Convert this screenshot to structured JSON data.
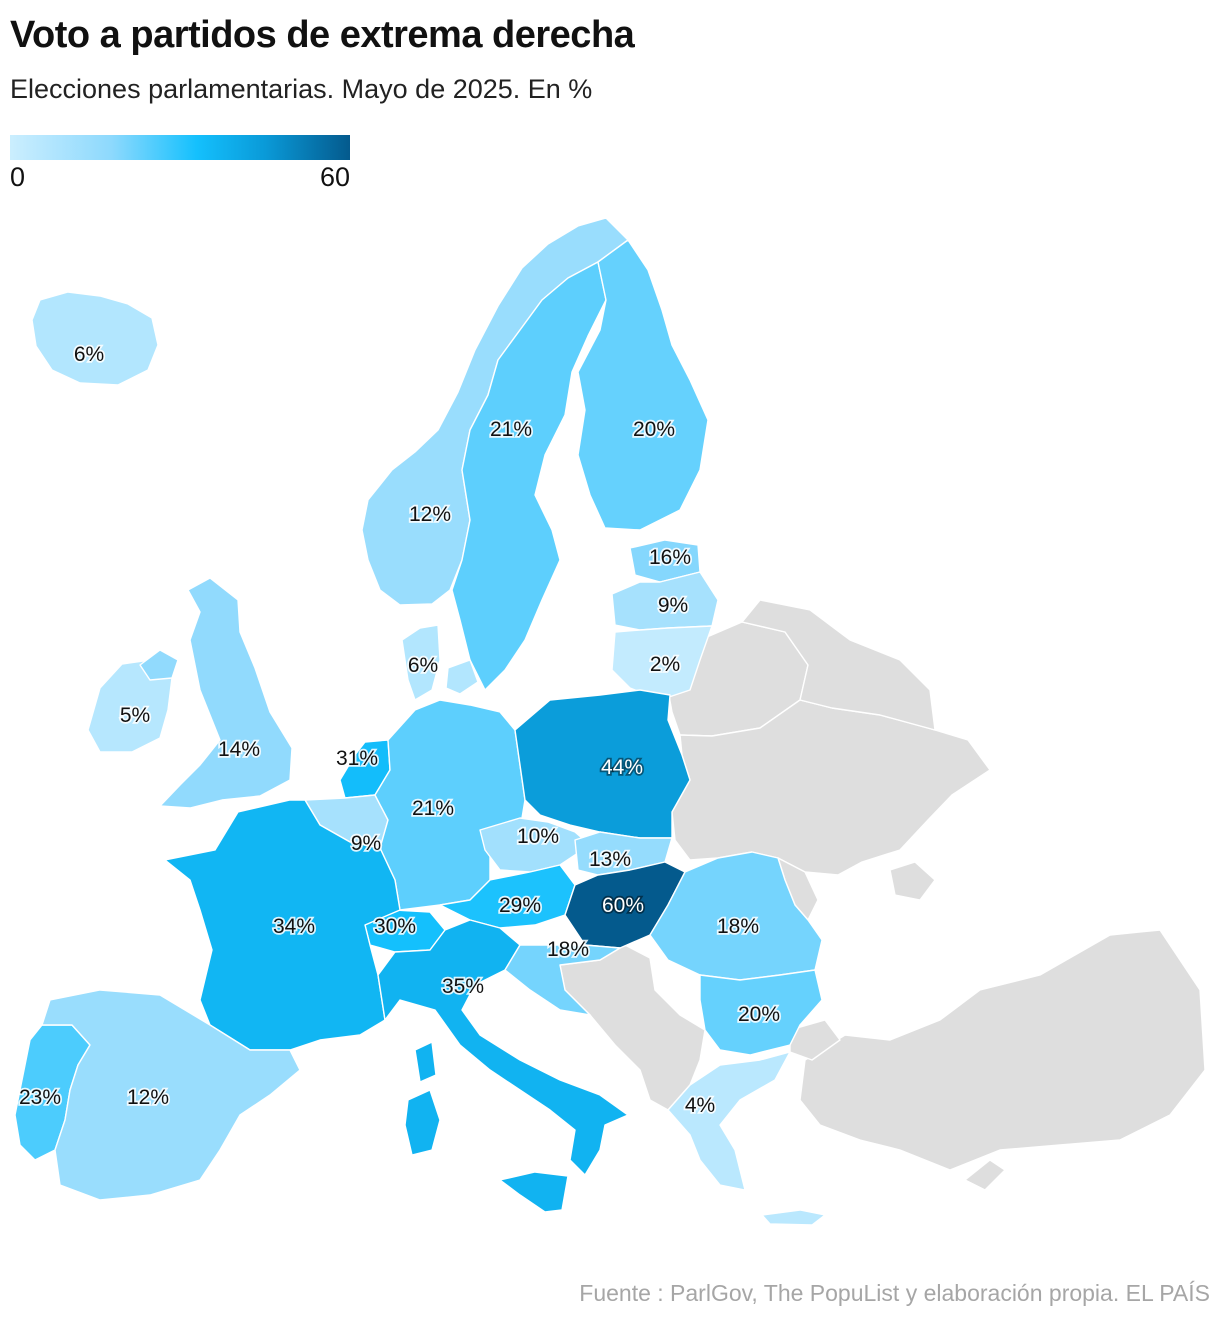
{
  "header": {
    "title": "Voto a partidos de extrema derecha",
    "subtitle": "Elecciones parlamentarias. Mayo de 2025. En %"
  },
  "legend": {
    "min_label": "0",
    "max_label": "60",
    "scale": {
      "min": 0,
      "max": 60
    },
    "colors": [
      "#cbeefe",
      "#8dd9fd",
      "#14c0fd",
      "#0a9ad8",
      "#045a8d"
    ]
  },
  "no_data_color": "#dedede",
  "chart_data": {
    "type": "choropleth",
    "unit": "%",
    "regions": [
      {
        "id": "iceland",
        "value": 6,
        "label": "6%"
      },
      {
        "id": "norway",
        "value": 12,
        "label": "12%"
      },
      {
        "id": "sweden",
        "value": 21,
        "label": "21%"
      },
      {
        "id": "finland",
        "value": 20,
        "label": "20%"
      },
      {
        "id": "estonia",
        "value": 16,
        "label": "16%"
      },
      {
        "id": "latvia",
        "value": 9,
        "label": "9%"
      },
      {
        "id": "lithuania",
        "value": 2,
        "label": "2%"
      },
      {
        "id": "denmark",
        "value": 6,
        "label": "6%"
      },
      {
        "id": "ireland",
        "value": 5,
        "label": "5%"
      },
      {
        "id": "united-kingdom",
        "value": 14,
        "label": "14%"
      },
      {
        "id": "netherlands",
        "value": 31,
        "label": "31%"
      },
      {
        "id": "belgium",
        "value": 9,
        "label": "9%"
      },
      {
        "id": "germany",
        "value": 21,
        "label": "21%"
      },
      {
        "id": "poland",
        "value": 44,
        "label": "44%"
      },
      {
        "id": "czechia",
        "value": 10,
        "label": "10%"
      },
      {
        "id": "slovakia",
        "value": 13,
        "label": "13%"
      },
      {
        "id": "austria",
        "value": 29,
        "label": "29%"
      },
      {
        "id": "hungary",
        "value": 60,
        "label": "60%"
      },
      {
        "id": "switzerland",
        "value": 30,
        "label": "30%"
      },
      {
        "id": "france",
        "value": 34,
        "label": "34%"
      },
      {
        "id": "italy",
        "value": 35,
        "label": "35%"
      },
      {
        "id": "slovenia-croatia",
        "value": 18,
        "label": "18%"
      },
      {
        "id": "romania",
        "value": 18,
        "label": "18%"
      },
      {
        "id": "bulgaria",
        "value": 20,
        "label": "20%"
      },
      {
        "id": "greece",
        "value": 4,
        "label": "4%"
      },
      {
        "id": "portugal",
        "value": 23,
        "label": "23%"
      },
      {
        "id": "spain",
        "value": 12,
        "label": "12%"
      }
    ]
  },
  "source": "Fuente : ParlGov, The PopuList y elaboración propia. EL PAÍS"
}
